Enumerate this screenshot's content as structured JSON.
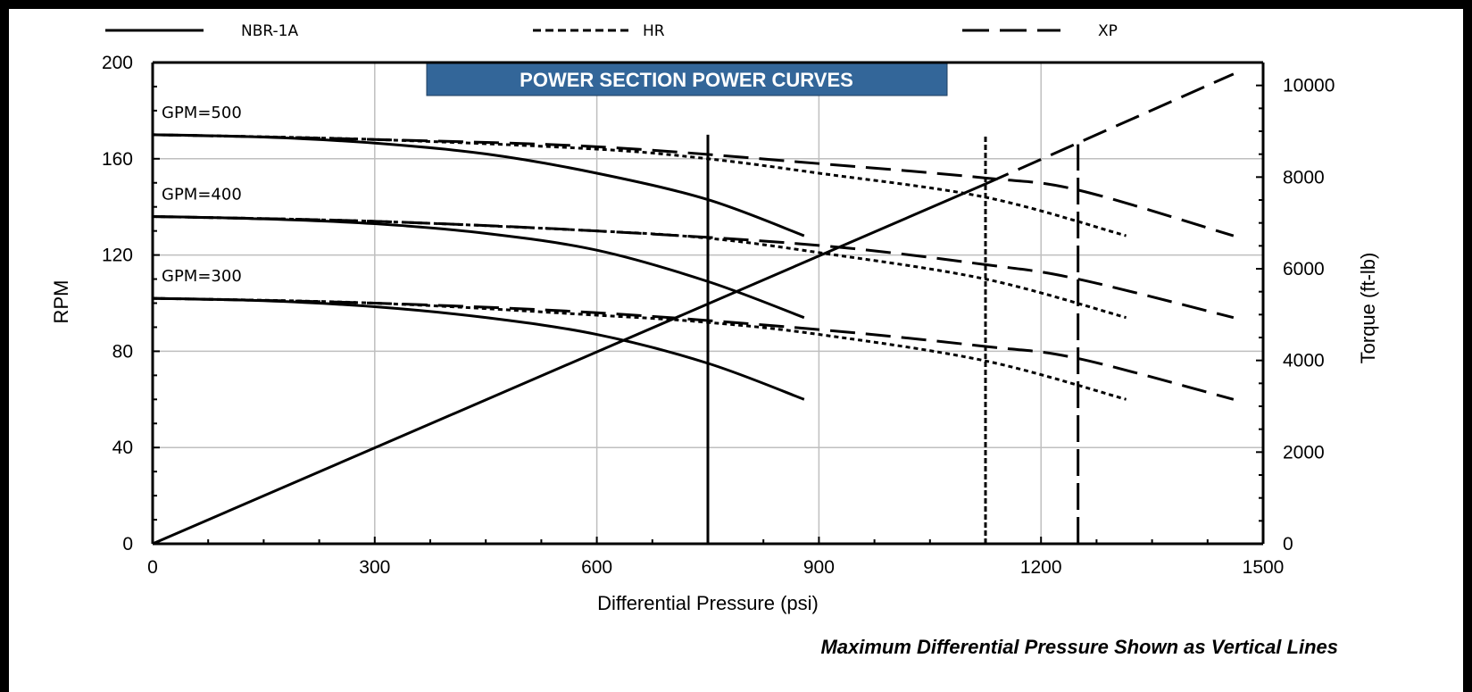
{
  "colors": {
    "title_fill": "#336699",
    "title_text": "#ffffff",
    "grid": "#bfbfbf",
    "line": "#000000"
  },
  "note": "Maximum Differential Pressure Shown as Vertical Lines",
  "chart_data": {
    "type": "line",
    "title": "POWER SECTION POWER CURVES",
    "xlabel": "Differential Pressure (psi)",
    "ylabel": "RPM",
    "y2label": "Torque (ft-lb)",
    "xlim": [
      0,
      1500
    ],
    "ylim": [
      0,
      200
    ],
    "y2lim": [
      0,
      10500
    ],
    "x_ticks": [
      0,
      300,
      600,
      900,
      1200,
      1500
    ],
    "y_ticks": [
      0,
      40,
      80,
      120,
      160,
      200
    ],
    "y2_ticks": [
      0,
      2000,
      4000,
      6000,
      8000,
      10000
    ],
    "grid": true,
    "legend_position": "top",
    "legend": [
      {
        "name": "NBR-1A",
        "style": "solid"
      },
      {
        "name": "HR",
        "style": "dotted"
      },
      {
        "name": "XP",
        "style": "dashed"
      }
    ],
    "annotations": [
      "GPM=500",
      "GPM=400",
      "GPM=300"
    ],
    "series": [
      {
        "name": "NBR-1A",
        "gpm": 500,
        "style": "solid",
        "x": [
          0,
          150,
          300,
          450,
          600,
          750,
          880
        ],
        "y": [
          170,
          169,
          166.5,
          162,
          154,
          143,
          128
        ]
      },
      {
        "name": "NBR-1A",
        "gpm": 400,
        "style": "solid",
        "x": [
          0,
          150,
          300,
          450,
          600,
          750,
          880
        ],
        "y": [
          136,
          135,
          133,
          129,
          122,
          109,
          94
        ]
      },
      {
        "name": "NBR-1A",
        "gpm": 300,
        "style": "solid",
        "x": [
          0,
          150,
          300,
          450,
          600,
          750,
          880
        ],
        "y": [
          102,
          101,
          98.5,
          94,
          87,
          75,
          60
        ]
      },
      {
        "name": "HR",
        "gpm": 500,
        "style": "dotted",
        "x": [
          0,
          300,
          600,
          750,
          900,
          1125,
          1315
        ],
        "y": [
          170,
          168,
          164,
          160,
          154,
          144,
          128
        ]
      },
      {
        "name": "HR",
        "gpm": 400,
        "style": "dotted",
        "x": [
          0,
          300,
          600,
          750,
          900,
          1125,
          1315
        ],
        "y": [
          136,
          134,
          130,
          127,
          121,
          110,
          94
        ]
      },
      {
        "name": "HR",
        "gpm": 300,
        "style": "dotted",
        "x": [
          0,
          300,
          600,
          750,
          900,
          1125,
          1315
        ],
        "y": [
          102,
          100,
          95,
          92,
          87,
          76,
          60
        ]
      },
      {
        "name": "XP",
        "gpm": 500,
        "style": "dashed",
        "x": [
          0,
          300,
          600,
          900,
          1125,
          1250,
          1460
        ],
        "y": [
          170,
          168,
          165,
          158,
          152,
          147,
          128
        ]
      },
      {
        "name": "XP",
        "gpm": 400,
        "style": "dashed",
        "x": [
          0,
          300,
          600,
          900,
          1125,
          1250,
          1460
        ],
        "y": [
          136,
          134,
          130,
          124,
          116,
          110,
          94
        ]
      },
      {
        "name": "XP",
        "gpm": 300,
        "style": "dashed",
        "x": [
          0,
          300,
          600,
          900,
          1125,
          1250,
          1460
        ],
        "y": [
          102,
          100,
          96,
          89,
          82,
          77,
          60
        ]
      },
      {
        "name": "NBR-1A",
        "kind": "torque",
        "style": "solid",
        "axis": "y2",
        "x": [
          0,
          1125
        ],
        "y2": [
          0,
          7850
        ]
      },
      {
        "name": "XP",
        "kind": "torque",
        "style": "dashed",
        "axis": "y2",
        "x": [
          1125,
          1460
        ],
        "y2": [
          7850,
          10250
        ]
      }
    ],
    "max_pressure_lines": [
      {
        "name": "NBR-1A",
        "style": "solid",
        "x": 750,
        "y": [
          0,
          170
        ]
      },
      {
        "name": "HR",
        "style": "dotted",
        "x": 1125,
        "y": [
          0,
          170
        ]
      },
      {
        "name": "XP",
        "style": "dashed",
        "x": 1250,
        "y": [
          0,
          166
        ]
      }
    ]
  }
}
